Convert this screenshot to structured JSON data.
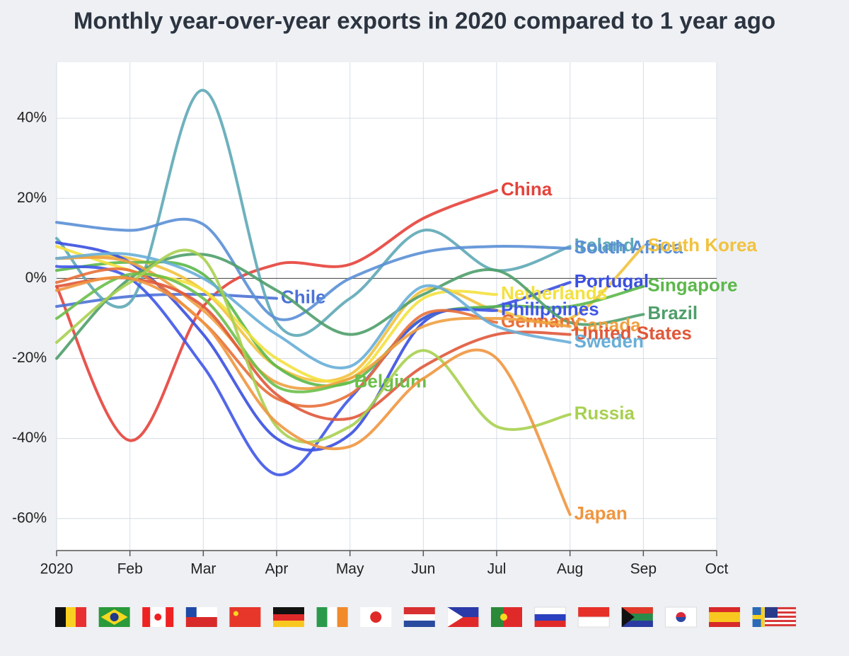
{
  "chart_data": {
    "type": "line",
    "title": "Monthly year-over-year exports in 2020 compared to 1 year ago",
    "categories": [
      "2020",
      "Feb",
      "Mar",
      "Apr",
      "May",
      "Jun",
      "Jul",
      "Aug",
      "Sep",
      "Oct"
    ],
    "ylim": [
      -68,
      54
    ],
    "yticks": [
      {
        "value": -60,
        "label": "-60%"
      },
      {
        "value": -40,
        "label": "-40%"
      },
      {
        "value": -20,
        "label": "-20%"
      },
      {
        "value": 0,
        "label": "0%"
      },
      {
        "value": 20,
        "label": "20%"
      },
      {
        "value": 40,
        "label": "40%"
      }
    ],
    "grid": true,
    "series": [
      {
        "name": "China",
        "color": "#e5433b",
        "values": [
          -2,
          -40.5,
          -7,
          3.5,
          3.5,
          15,
          22,
          null,
          null,
          null
        ]
      },
      {
        "name": "Chile",
        "color": "#4c72d6",
        "values": [
          -7,
          -4.5,
          -4,
          -5,
          null,
          null,
          null,
          null,
          null,
          null
        ]
      },
      {
        "name": "Ireland",
        "color": "#5ea8b6",
        "values": [
          10,
          -6,
          47,
          -11,
          -5,
          12,
          2,
          8,
          null,
          null
        ]
      },
      {
        "name": "South Africa",
        "color": "#5a8fd6",
        "values": [
          14,
          12,
          13.5,
          -10,
          0,
          6.5,
          8,
          7.5,
          null,
          null
        ]
      },
      {
        "name": "South Korea",
        "color": "#f2c23e",
        "values": [
          5,
          5,
          -3,
          -22,
          -24,
          -3,
          -8,
          -10,
          8,
          null
        ]
      },
      {
        "name": "Portugal",
        "color": "#3a4fe0",
        "values": [
          9,
          4,
          -14,
          -40,
          -39,
          -11,
          -7,
          -1,
          null,
          null
        ]
      },
      {
        "name": "Singapore",
        "color": "#5cb84a",
        "values": [
          2,
          4,
          1,
          -22,
          -26,
          -10,
          -7,
          -7,
          -2,
          null
        ]
      },
      {
        "name": "Netherlands",
        "color": "#f3e13f",
        "values": [
          8,
          2,
          -3,
          -20,
          -25,
          -5,
          -4,
          null,
          null,
          null
        ]
      },
      {
        "name": "Philippines",
        "color": "#3f57e8",
        "values": [
          3,
          0,
          -22,
          -49,
          -30,
          -10,
          -8,
          null,
          null,
          null
        ]
      },
      {
        "name": "Brazil",
        "color": "#4f9e6a",
        "values": [
          -20,
          0,
          6,
          -3,
          -14,
          -4,
          2,
          -11,
          -9,
          null
        ]
      },
      {
        "name": "Germany",
        "color": "#e8703a",
        "values": [
          -1,
          2,
          -11,
          -30,
          -29,
          -9,
          -11,
          null,
          null,
          null
        ]
      },
      {
        "name": "Canada",
        "color": "#efa040",
        "values": [
          5,
          4,
          -8,
          -26,
          -25,
          -12,
          -10,
          -12,
          null,
          null
        ]
      },
      {
        "name": "United States",
        "color": "#e0583a",
        "values": [
          -2,
          0,
          -7,
          -29,
          -35,
          -22,
          -14,
          -14,
          null,
          null
        ]
      },
      {
        "name": "Sweden",
        "color": "#68aed8",
        "values": [
          5,
          6,
          0,
          -14,
          -22,
          -2,
          -12,
          -16,
          null,
          null
        ]
      },
      {
        "name": "Belgium",
        "color": "#6cbf4a",
        "values": [
          -10,
          1,
          -5,
          -27,
          -26,
          null,
          null,
          null,
          null,
          null
        ]
      },
      {
        "name": "Russia",
        "color": "#a8d050",
        "values": [
          -16,
          -1,
          5,
          -37,
          -37,
          -18,
          -37,
          -34,
          null,
          null
        ]
      },
      {
        "name": "Japan",
        "color": "#ef9640",
        "values": [
          -3,
          0,
          -11,
          -36,
          -42,
          -25,
          -20,
          -59,
          null,
          null
        ]
      }
    ]
  }
}
